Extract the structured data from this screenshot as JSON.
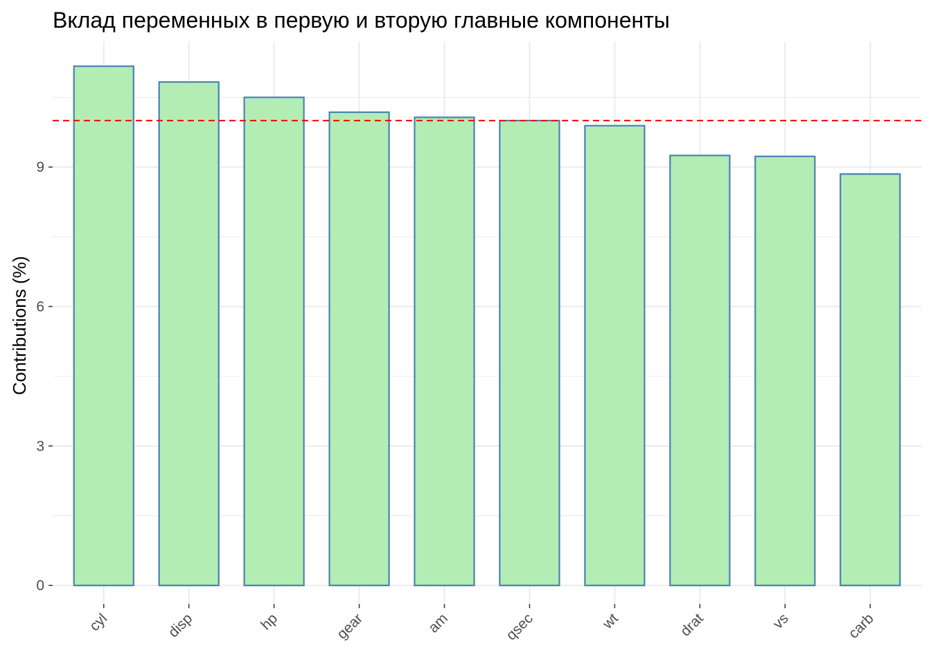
{
  "chart_data": {
    "type": "bar",
    "title": "Вклад переменных в первую и вторую главные компоненты",
    "xlabel": "",
    "ylabel": "Contributions (%)",
    "categories": [
      "cyl",
      "disp",
      "hp",
      "gear",
      "am",
      "qsec",
      "wt",
      "drat",
      "vs",
      "carb"
    ],
    "values": [
      11.17,
      10.83,
      10.5,
      10.18,
      10.07,
      10.0,
      9.89,
      9.25,
      9.23,
      8.85
    ],
    "ylim": [
      -0.4,
      11.7
    ],
    "yticks": [
      "0",
      "3",
      "6",
      "9"
    ],
    "reference_line": {
      "value": 10,
      "style": "dashed"
    },
    "grid": true,
    "legend": "none",
    "colors": {
      "bar_fill": "#b4edb4",
      "bar_stroke": "#4682b4",
      "reference_line": "#ff0000",
      "grid": "#ebebeb"
    }
  }
}
